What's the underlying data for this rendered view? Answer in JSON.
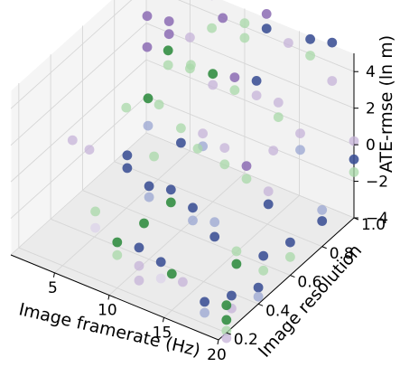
{
  "chart_data": {
    "type": "scatter",
    "projection": "3d",
    "title": "",
    "grid": true,
    "x_axis": {
      "label": "Image framerate (Hz)",
      "range": [
        1,
        20
      ],
      "ticks": [
        5,
        10,
        15,
        20
      ],
      "tick_labels": [
        "5",
        "10",
        "15",
        "20"
      ]
    },
    "y_axis": {
      "label": "Image resolution",
      "range": [
        0.15,
        1.0
      ],
      "ticks": [
        0.2,
        0.4,
        0.6,
        0.8,
        1.0
      ],
      "tick_labels": [
        "0.2",
        "0.4",
        "0.6",
        "0.8",
        "1.0"
      ]
    },
    "z_axis": {
      "label": "ATE-rmse (ln m)",
      "range": [
        -4,
        5
      ],
      "ticks": [
        -4,
        -2,
        0,
        2,
        4
      ],
      "tick_labels": [
        "−4",
        "−2",
        "0",
        "2",
        "4"
      ]
    },
    "colors": {
      "purple": "#8e6fb5",
      "light_purple": "#c6b3d8",
      "blue": "#3a4f94",
      "light_blue": "#9aa6d2",
      "green": "#2e8b3d",
      "light_green": "#a8d8a8",
      "pale": "#dcd3ea"
    },
    "points": [
      {
        "x": 1,
        "y": 1.0,
        "z": 4.6,
        "c": "purple"
      },
      {
        "x": 2,
        "y": 1.0,
        "z": 4.5,
        "c": "purple"
      },
      {
        "x": 3,
        "y": 1.0,
        "z": 1.0,
        "c": "green"
      },
      {
        "x": 3,
        "y": 1.0,
        "z": 0.2,
        "c": "light_green"
      },
      {
        "x": 4,
        "y": 0.8,
        "z": 4.7,
        "c": "purple"
      },
      {
        "x": 4,
        "y": 0.8,
        "z": 3.0,
        "c": "purple"
      },
      {
        "x": 5,
        "y": 1.0,
        "z": 2.2,
        "c": "light_purple"
      },
      {
        "x": 5,
        "y": 1.0,
        "z": 0.5,
        "c": "light_green"
      },
      {
        "x": 6,
        "y": 0.8,
        "z": 4.9,
        "c": "purple"
      },
      {
        "x": 6,
        "y": 0.8,
        "z": 4.2,
        "c": "purple"
      },
      {
        "x": 7,
        "y": 1.0,
        "z": 5.0,
        "c": "purple"
      },
      {
        "x": 7,
        "y": 1.0,
        "z": 3.2,
        "c": "light_green"
      },
      {
        "x": 7,
        "y": 0.6,
        "z": 2.5,
        "c": "green"
      },
      {
        "x": 7,
        "y": 0.6,
        "z": 1.0,
        "c": "light_blue"
      },
      {
        "x": 8,
        "y": 1.0,
        "z": 4.0,
        "c": "purple"
      },
      {
        "x": 8,
        "y": 0.8,
        "z": 3.0,
        "c": "light_green"
      },
      {
        "x": 8,
        "y": 0.6,
        "z": 2.4,
        "c": "light_green"
      },
      {
        "x": 8,
        "y": 0.4,
        "z": 1.2,
        "c": "blue"
      },
      {
        "x": 8,
        "y": 0.4,
        "z": 0.5,
        "c": "blue"
      },
      {
        "x": 8,
        "y": 0.2,
        "z": -0.3,
        "c": "light_green"
      },
      {
        "x": 8,
        "y": 0.2,
        "z": -1.2,
        "c": "pale"
      },
      {
        "x": 10,
        "y": 1.0,
        "z": 4.2,
        "c": "light_green"
      },
      {
        "x": 10,
        "y": 1.0,
        "z": 3.4,
        "c": "light_green"
      },
      {
        "x": 10,
        "y": 0.8,
        "z": 3.0,
        "c": "green"
      },
      {
        "x": 10,
        "y": 0.8,
        "z": 2.4,
        "c": "light_purple"
      },
      {
        "x": 10,
        "y": 0.6,
        "z": 1.6,
        "c": "light_green"
      },
      {
        "x": 10,
        "y": 0.6,
        "z": 0.8,
        "c": "blue"
      },
      {
        "x": 10,
        "y": 0.4,
        "z": 0.0,
        "c": "blue"
      },
      {
        "x": 10,
        "y": 0.4,
        "z": -0.6,
        "c": "light_blue"
      },
      {
        "x": 10,
        "y": 0.2,
        "z": -1.5,
        "c": "green"
      },
      {
        "x": 10,
        "y": 0.2,
        "z": -2.2,
        "c": "light_green"
      },
      {
        "x": 12,
        "y": 1.0,
        "z": 5.2,
        "c": "purple"
      },
      {
        "x": 12,
        "y": 1.0,
        "z": 4.4,
        "c": "blue"
      },
      {
        "x": 12,
        "y": 0.8,
        "z": 3.3,
        "c": "purple"
      },
      {
        "x": 12,
        "y": 0.8,
        "z": 2.6,
        "c": "light_green"
      },
      {
        "x": 12,
        "y": 0.6,
        "z": 1.8,
        "c": "light_purple"
      },
      {
        "x": 12,
        "y": 0.6,
        "z": 1.1,
        "c": "light_blue"
      },
      {
        "x": 12,
        "y": 0.4,
        "z": 0.3,
        "c": "blue"
      },
      {
        "x": 12,
        "y": 0.4,
        "z": -0.4,
        "c": "green"
      },
      {
        "x": 12,
        "y": 0.2,
        "z": -1.3,
        "c": "blue"
      },
      {
        "x": 12,
        "y": 0.2,
        "z": -2.3,
        "c": "light_purple"
      },
      {
        "x": 12,
        "y": 0.2,
        "z": -3.1,
        "c": "light_purple"
      },
      {
        "x": 14,
        "y": 1.0,
        "z": 4.1,
        "c": "light_purple"
      },
      {
        "x": 14,
        "y": 0.8,
        "z": 3.6,
        "c": "blue"
      },
      {
        "x": 14,
        "y": 0.8,
        "z": 2.8,
        "c": "light_purple"
      },
      {
        "x": 14,
        "y": 0.6,
        "z": 1.5,
        "c": "light_purple"
      },
      {
        "x": 14,
        "y": 0.6,
        "z": 0.6,
        "c": "light_green"
      },
      {
        "x": 14,
        "y": 0.4,
        "z": -0.2,
        "c": "blue"
      },
      {
        "x": 14,
        "y": 0.4,
        "z": -0.9,
        "c": "light_blue"
      },
      {
        "x": 14,
        "y": 0.2,
        "z": -1.6,
        "c": "blue"
      },
      {
        "x": 14,
        "y": 0.2,
        "z": -2.5,
        "c": "pale"
      },
      {
        "x": 16,
        "y": 1.0,
        "z": 4.8,
        "c": "blue"
      },
      {
        "x": 16,
        "y": 1.0,
        "z": 3.9,
        "c": "light_green"
      },
      {
        "x": 16,
        "y": 0.8,
        "z": 2.9,
        "c": "light_purple"
      },
      {
        "x": 16,
        "y": 0.8,
        "z": 2.1,
        "c": "light_green"
      },
      {
        "x": 16,
        "y": 0.6,
        "z": 1.0,
        "c": "purple"
      },
      {
        "x": 16,
        "y": 0.6,
        "z": 0.3,
        "c": "light_green"
      },
      {
        "x": 16,
        "y": 0.4,
        "z": -0.5,
        "c": "light_blue"
      },
      {
        "x": 16,
        "y": 0.4,
        "z": -1.3,
        "c": "blue"
      },
      {
        "x": 16,
        "y": 0.2,
        "z": -2.2,
        "c": "light_purple"
      },
      {
        "x": 18,
        "y": 1.0,
        "z": 5.1,
        "c": "blue"
      },
      {
        "x": 18,
        "y": 1.0,
        "z": 3.0,
        "c": "light_purple"
      },
      {
        "x": 18,
        "y": 0.8,
        "z": 1.7,
        "c": "light_purple"
      },
      {
        "x": 18,
        "y": 0.8,
        "z": 0.8,
        "c": "light_blue"
      },
      {
        "x": 18,
        "y": 0.6,
        "z": 0.1,
        "c": "light_purple"
      },
      {
        "x": 18,
        "y": 0.6,
        "z": -0.6,
        "c": "blue"
      },
      {
        "x": 18,
        "y": 0.4,
        "z": -1.6,
        "c": "light_green"
      },
      {
        "x": 18,
        "y": 0.4,
        "z": -2.3,
        "c": "green"
      },
      {
        "x": 18,
        "y": 0.2,
        "z": -2.8,
        "c": "blue"
      },
      {
        "x": 18,
        "y": 0.2,
        "z": -3.4,
        "c": "light_blue"
      },
      {
        "x": 20,
        "y": 1.0,
        "z": 0.2,
        "c": "light_purple"
      },
      {
        "x": 20,
        "y": 1.0,
        "z": -0.8,
        "c": "blue"
      },
      {
        "x": 20,
        "y": 1.0,
        "z": -1.5,
        "c": "light_green"
      },
      {
        "x": 20,
        "y": 0.8,
        "z": -2.0,
        "c": "light_blue"
      },
      {
        "x": 20,
        "y": 0.8,
        "z": -2.6,
        "c": "blue"
      },
      {
        "x": 20,
        "y": 0.6,
        "z": -2.2,
        "c": "blue"
      },
      {
        "x": 20,
        "y": 0.6,
        "z": -3.0,
        "c": "light_green"
      },
      {
        "x": 20,
        "y": 0.4,
        "z": -3.1,
        "c": "blue"
      },
      {
        "x": 20,
        "y": 0.4,
        "z": -3.6,
        "c": "light_blue"
      },
      {
        "x": 20,
        "y": 0.2,
        "z": -2.5,
        "c": "green"
      },
      {
        "x": 20,
        "y": 0.2,
        "z": -3.3,
        "c": "green"
      },
      {
        "x": 20,
        "y": 0.2,
        "z": -3.9,
        "c": "light_green"
      },
      {
        "x": 20,
        "y": 0.2,
        "z": -4.3,
        "c": "light_purple"
      },
      {
        "x": 19,
        "y": 0.3,
        "z": -3.0,
        "c": "blue"
      },
      {
        "x": 19,
        "y": 0.3,
        "z": -3.7,
        "c": "light_purple"
      },
      {
        "x": 19,
        "y": 0.5,
        "z": -2.4,
        "c": "blue"
      },
      {
        "x": 19,
        "y": 0.5,
        "z": -3.2,
        "c": "light_green"
      },
      {
        "x": 15,
        "y": 0.2,
        "z": -2.0,
        "c": "green"
      },
      {
        "x": 11,
        "y": 0.3,
        "z": -1.0,
        "c": "green"
      },
      {
        "x": 9,
        "y": 0.5,
        "z": 0.6,
        "c": "light_green"
      },
      {
        "x": 6,
        "y": 0.3,
        "z": 1.8,
        "c": "light_purple"
      },
      {
        "x": 5,
        "y": 0.6,
        "z": 1.5,
        "c": "light_green"
      },
      {
        "x": 3,
        "y": 0.4,
        "z": 0.8,
        "c": "light_purple"
      },
      {
        "x": 13,
        "y": 0.5,
        "z": 2.0,
        "c": "light_green"
      },
      {
        "x": 17,
        "y": 0.7,
        "z": 1.3,
        "c": "light_purple"
      }
    ]
  }
}
